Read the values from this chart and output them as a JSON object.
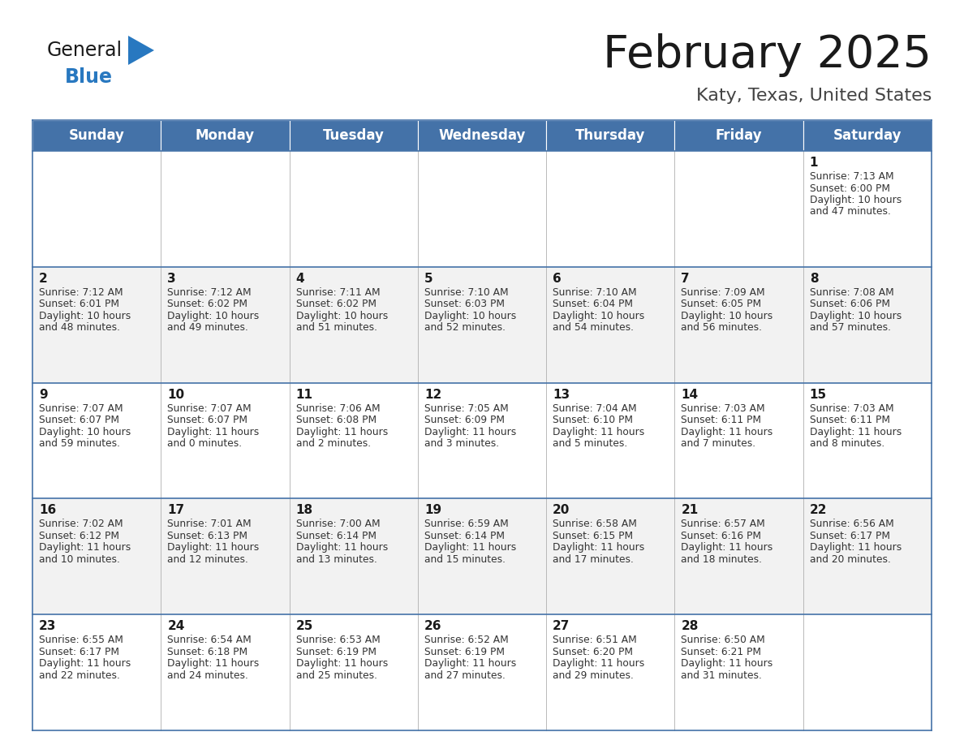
{
  "title": "February 2025",
  "subtitle": "Katy, Texas, United States",
  "header_color": "#4472a8",
  "header_text_color": "#ffffff",
  "bg_color": "#ffffff",
  "alt_row_color": "#f2f2f2",
  "border_color": "#4472a8",
  "days_of_week": [
    "Sunday",
    "Monday",
    "Tuesday",
    "Wednesday",
    "Thursday",
    "Friday",
    "Saturday"
  ],
  "title_color": "#1a1a1a",
  "subtitle_color": "#444444",
  "cell_text_color": "#333333",
  "day_num_color": "#1a1a1a",
  "calendar_data": [
    [
      {
        "day": "",
        "sunrise": "",
        "sunset": "",
        "daylight_h": "",
        "daylight_m": ""
      },
      {
        "day": "",
        "sunrise": "",
        "sunset": "",
        "daylight_h": "",
        "daylight_m": ""
      },
      {
        "day": "",
        "sunrise": "",
        "sunset": "",
        "daylight_h": "",
        "daylight_m": ""
      },
      {
        "day": "",
        "sunrise": "",
        "sunset": "",
        "daylight_h": "",
        "daylight_m": ""
      },
      {
        "day": "",
        "sunrise": "",
        "sunset": "",
        "daylight_h": "",
        "daylight_m": ""
      },
      {
        "day": "",
        "sunrise": "",
        "sunset": "",
        "daylight_h": "",
        "daylight_m": ""
      },
      {
        "day": "1",
        "sunrise": "7:13 AM",
        "sunset": "6:00 PM",
        "daylight_h": "10 hours",
        "daylight_m": "and 47 minutes."
      }
    ],
    [
      {
        "day": "2",
        "sunrise": "7:12 AM",
        "sunset": "6:01 PM",
        "daylight_h": "10 hours",
        "daylight_m": "and 48 minutes."
      },
      {
        "day": "3",
        "sunrise": "7:12 AM",
        "sunset": "6:02 PM",
        "daylight_h": "10 hours",
        "daylight_m": "and 49 minutes."
      },
      {
        "day": "4",
        "sunrise": "7:11 AM",
        "sunset": "6:02 PM",
        "daylight_h": "10 hours",
        "daylight_m": "and 51 minutes."
      },
      {
        "day": "5",
        "sunrise": "7:10 AM",
        "sunset": "6:03 PM",
        "daylight_h": "10 hours",
        "daylight_m": "and 52 minutes."
      },
      {
        "day": "6",
        "sunrise": "7:10 AM",
        "sunset": "6:04 PM",
        "daylight_h": "10 hours",
        "daylight_m": "and 54 minutes."
      },
      {
        "day": "7",
        "sunrise": "7:09 AM",
        "sunset": "6:05 PM",
        "daylight_h": "10 hours",
        "daylight_m": "and 56 minutes."
      },
      {
        "day": "8",
        "sunrise": "7:08 AM",
        "sunset": "6:06 PM",
        "daylight_h": "10 hours",
        "daylight_m": "and 57 minutes."
      }
    ],
    [
      {
        "day": "9",
        "sunrise": "7:07 AM",
        "sunset": "6:07 PM",
        "daylight_h": "10 hours",
        "daylight_m": "and 59 minutes."
      },
      {
        "day": "10",
        "sunrise": "7:07 AM",
        "sunset": "6:07 PM",
        "daylight_h": "11 hours",
        "daylight_m": "and 0 minutes."
      },
      {
        "day": "11",
        "sunrise": "7:06 AM",
        "sunset": "6:08 PM",
        "daylight_h": "11 hours",
        "daylight_m": "and 2 minutes."
      },
      {
        "day": "12",
        "sunrise": "7:05 AM",
        "sunset": "6:09 PM",
        "daylight_h": "11 hours",
        "daylight_m": "and 3 minutes."
      },
      {
        "day": "13",
        "sunrise": "7:04 AM",
        "sunset": "6:10 PM",
        "daylight_h": "11 hours",
        "daylight_m": "and 5 minutes."
      },
      {
        "day": "14",
        "sunrise": "7:03 AM",
        "sunset": "6:11 PM",
        "daylight_h": "11 hours",
        "daylight_m": "and 7 minutes."
      },
      {
        "day": "15",
        "sunrise": "7:03 AM",
        "sunset": "6:11 PM",
        "daylight_h": "11 hours",
        "daylight_m": "and 8 minutes."
      }
    ],
    [
      {
        "day": "16",
        "sunrise": "7:02 AM",
        "sunset": "6:12 PM",
        "daylight_h": "11 hours",
        "daylight_m": "and 10 minutes."
      },
      {
        "day": "17",
        "sunrise": "7:01 AM",
        "sunset": "6:13 PM",
        "daylight_h": "11 hours",
        "daylight_m": "and 12 minutes."
      },
      {
        "day": "18",
        "sunrise": "7:00 AM",
        "sunset": "6:14 PM",
        "daylight_h": "11 hours",
        "daylight_m": "and 13 minutes."
      },
      {
        "day": "19",
        "sunrise": "6:59 AM",
        "sunset": "6:14 PM",
        "daylight_h": "11 hours",
        "daylight_m": "and 15 minutes."
      },
      {
        "day": "20",
        "sunrise": "6:58 AM",
        "sunset": "6:15 PM",
        "daylight_h": "11 hours",
        "daylight_m": "and 17 minutes."
      },
      {
        "day": "21",
        "sunrise": "6:57 AM",
        "sunset": "6:16 PM",
        "daylight_h": "11 hours",
        "daylight_m": "and 18 minutes."
      },
      {
        "day": "22",
        "sunrise": "6:56 AM",
        "sunset": "6:17 PM",
        "daylight_h": "11 hours",
        "daylight_m": "and 20 minutes."
      }
    ],
    [
      {
        "day": "23",
        "sunrise": "6:55 AM",
        "sunset": "6:17 PM",
        "daylight_h": "11 hours",
        "daylight_m": "and 22 minutes."
      },
      {
        "day": "24",
        "sunrise": "6:54 AM",
        "sunset": "6:18 PM",
        "daylight_h": "11 hours",
        "daylight_m": "and 24 minutes."
      },
      {
        "day": "25",
        "sunrise": "6:53 AM",
        "sunset": "6:19 PM",
        "daylight_h": "11 hours",
        "daylight_m": "and 25 minutes."
      },
      {
        "day": "26",
        "sunrise": "6:52 AM",
        "sunset": "6:19 PM",
        "daylight_h": "11 hours",
        "daylight_m": "and 27 minutes."
      },
      {
        "day": "27",
        "sunrise": "6:51 AM",
        "sunset": "6:20 PM",
        "daylight_h": "11 hours",
        "daylight_m": "and 29 minutes."
      },
      {
        "day": "28",
        "sunrise": "6:50 AM",
        "sunset": "6:21 PM",
        "daylight_h": "11 hours",
        "daylight_m": "and 31 minutes."
      },
      {
        "day": "",
        "sunrise": "",
        "sunset": "",
        "daylight_h": "",
        "daylight_m": ""
      }
    ]
  ],
  "logo_general_color": "#1a1a1a",
  "logo_blue_color": "#2878c0",
  "logo_triangle_color": "#2878c0"
}
